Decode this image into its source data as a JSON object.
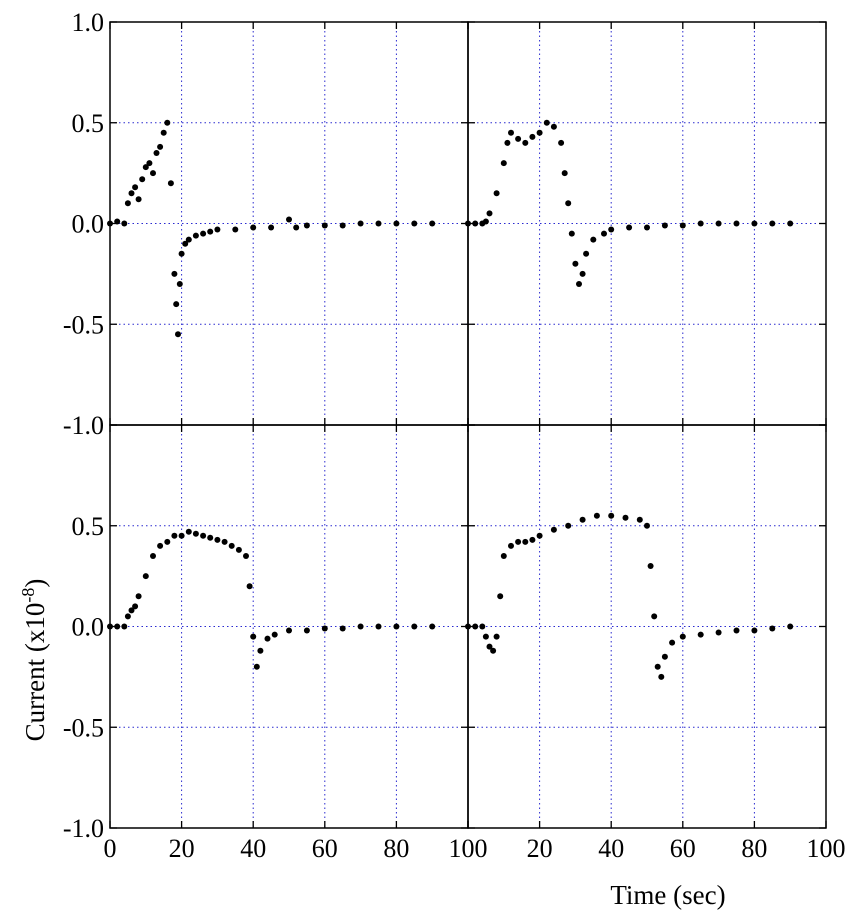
{
  "chart_data": {
    "type": "scatter",
    "layout": "2x2 panels",
    "ylabel": "Current (x10",
    "ylabel_exp": "-8",
    "ylabel_close": ")",
    "xlabel": "Time (sec)",
    "ylim": [
      -1.0,
      1.0
    ],
    "xlim": [
      0,
      100
    ],
    "y_ticks": [
      -1.0,
      -0.5,
      0.0,
      0.5,
      1.0
    ],
    "y_tick_labels": [
      "-1.0",
      "-0.5",
      "0.0",
      "0.5",
      "1.0"
    ],
    "x_ticks": [
      0,
      20,
      40,
      60,
      80,
      100
    ],
    "x_tick_labels_left": [
      "0",
      "20",
      "40",
      "60",
      "80"
    ],
    "x_tick_label_shared": "100",
    "x_tick_labels_right": [
      "20",
      "40",
      "60",
      "80",
      "100"
    ],
    "grid": true,
    "marker_color": "#000000",
    "grid_color": "#2a2ad0",
    "panels": [
      {
        "position": "top-left",
        "series": {
          "x": [
            0,
            2,
            4,
            5,
            6,
            7,
            8,
            9,
            10,
            11,
            12,
            13,
            14,
            15,
            16,
            17,
            18,
            18.5,
            19,
            19.5,
            20,
            21,
            22,
            24,
            26,
            28,
            30,
            35,
            40,
            45,
            50,
            52,
            55,
            60,
            65,
            70,
            75,
            80,
            85,
            90
          ],
          "y": [
            0.0,
            0.01,
            0.0,
            0.1,
            0.15,
            0.18,
            0.12,
            0.22,
            0.28,
            0.3,
            0.25,
            0.35,
            0.38,
            0.45,
            0.5,
            0.2,
            -0.25,
            -0.4,
            -0.55,
            -0.3,
            -0.15,
            -0.1,
            -0.08,
            -0.06,
            -0.05,
            -0.04,
            -0.03,
            -0.03,
            -0.02,
            -0.02,
            0.02,
            -0.02,
            -0.01,
            -0.01,
            -0.01,
            0.0,
            0.0,
            0.0,
            0.0,
            0.0
          ]
        }
      },
      {
        "position": "top-right",
        "series": {
          "x": [
            0,
            2,
            4,
            5,
            6,
            8,
            10,
            11,
            12,
            14,
            16,
            18,
            20,
            22,
            24,
            26,
            27,
            28,
            29,
            30,
            31,
            32,
            33,
            35,
            38,
            40,
            45,
            50,
            55,
            60,
            65,
            70,
            75,
            80,
            85,
            90
          ],
          "y": [
            0.0,
            0.0,
            0.0,
            0.01,
            0.05,
            0.15,
            0.3,
            0.4,
            0.45,
            0.42,
            0.4,
            0.43,
            0.45,
            0.5,
            0.48,
            0.4,
            0.25,
            0.1,
            -0.05,
            -0.2,
            -0.3,
            -0.25,
            -0.15,
            -0.08,
            -0.05,
            -0.03,
            -0.02,
            -0.02,
            -0.01,
            -0.01,
            0.0,
            0.0,
            0.0,
            0.0,
            0.0,
            0.0
          ]
        }
      },
      {
        "position": "bottom-left",
        "series": {
          "x": [
            0,
            2,
            4,
            5,
            6,
            7,
            8,
            10,
            12,
            14,
            16,
            18,
            20,
            22,
            24,
            26,
            28,
            30,
            32,
            34,
            36,
            38,
            39,
            40,
            41,
            42,
            44,
            46,
            50,
            55,
            60,
            65,
            70,
            75,
            80,
            85,
            90
          ],
          "y": [
            0.0,
            0.0,
            0.0,
            0.05,
            0.08,
            0.1,
            0.15,
            0.25,
            0.35,
            0.4,
            0.42,
            0.45,
            0.45,
            0.47,
            0.46,
            0.45,
            0.44,
            0.43,
            0.42,
            0.4,
            0.38,
            0.35,
            0.2,
            -0.05,
            -0.2,
            -0.12,
            -0.06,
            -0.04,
            -0.02,
            -0.02,
            -0.01,
            -0.01,
            0.0,
            0.0,
            0.0,
            0.0,
            0.0
          ]
        }
      },
      {
        "position": "bottom-right",
        "series": {
          "x": [
            0,
            2,
            4,
            5,
            6,
            7,
            8,
            9,
            10,
            12,
            14,
            16,
            18,
            20,
            24,
            28,
            32,
            36,
            40,
            44,
            48,
            50,
            51,
            52,
            53,
            54,
            55,
            57,
            60,
            65,
            70,
            75,
            80,
            85,
            90
          ],
          "y": [
            0.0,
            0.0,
            0.0,
            -0.05,
            -0.1,
            -0.12,
            -0.05,
            0.15,
            0.35,
            0.4,
            0.42,
            0.42,
            0.43,
            0.45,
            0.48,
            0.5,
            0.53,
            0.55,
            0.55,
            0.54,
            0.53,
            0.5,
            0.3,
            0.05,
            -0.2,
            -0.25,
            -0.15,
            -0.08,
            -0.05,
            -0.04,
            -0.03,
            -0.02,
            -0.02,
            -0.01,
            0.0
          ]
        }
      }
    ]
  }
}
